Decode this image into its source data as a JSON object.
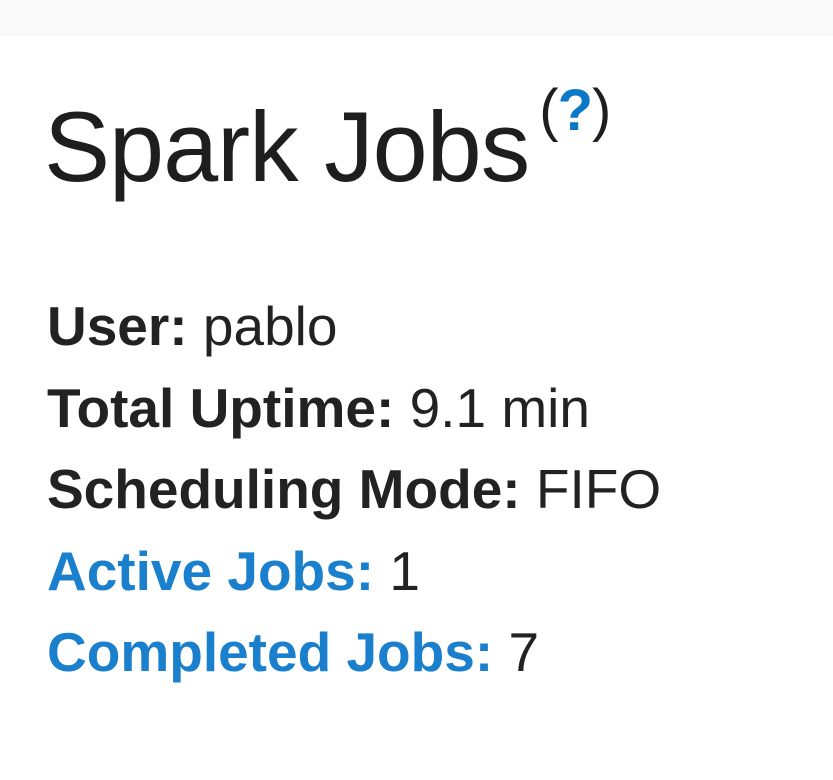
{
  "header": {
    "title": "Spark Jobs",
    "help_open": "(",
    "help_label": "?",
    "help_close": ")"
  },
  "summary": [
    {
      "label": "User:",
      "value": "pablo"
    },
    {
      "label": "Total Uptime:",
      "value": "9.1 min"
    },
    {
      "label": "Scheduling Mode:",
      "value": "FIFO"
    },
    {
      "label": "Active Jobs:",
      "value": "1",
      "link": true
    },
    {
      "label": "Completed Jobs:",
      "value": "7",
      "link": true
    }
  ],
  "colors": {
    "link": "#1a7fcc",
    "text": "#222222"
  }
}
